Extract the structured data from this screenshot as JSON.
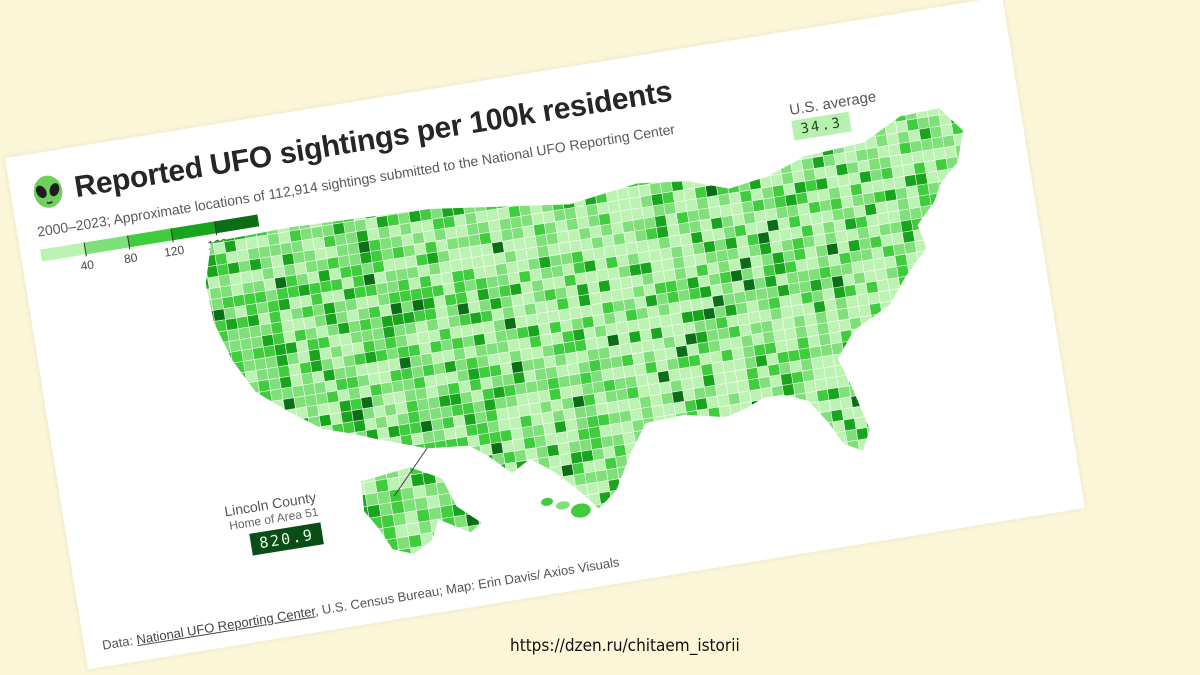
{
  "title": "Reported UFO sightings per 100k residents",
  "subtitle": "2000–2023; Approximate locations of 112,914 sightings submitted to the National UFO Reporting Center",
  "legend": {
    "ticks": [
      "40",
      "80",
      "120",
      "160"
    ],
    "colors": [
      "#bdf3b2",
      "#7fe07a",
      "#3fcc3d",
      "#18a51d",
      "#0b6e17"
    ]
  },
  "us_average": {
    "label": "U.S. average",
    "value": "34.3"
  },
  "callout": {
    "title": "Lincoln County",
    "subtitle": "Home of Area 51",
    "value": "820.9"
  },
  "source": {
    "prefix": "Data: ",
    "link": "National UFO Reporting Center",
    "rest": ", U.S. Census Bureau; Map: Erin Davis/ Axios Visuals"
  },
  "watermark": "https://dzen.ru/chitaem_istorii"
}
